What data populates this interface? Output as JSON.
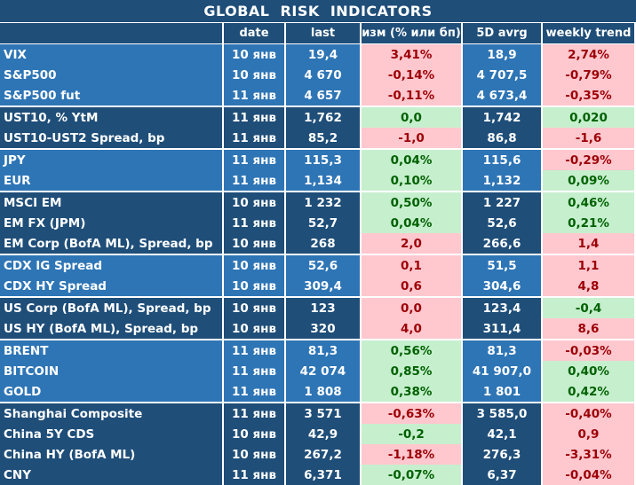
{
  "title": "GLOBAL  RISK  INDICATORS",
  "headers": [
    "",
    "date",
    "last",
    "изм (% или бп)",
    "5D avrg",
    "weekly trend"
  ],
  "rows": [
    {
      "name": "VIX",
      "date": "10 янв",
      "last": "19,4",
      "chg": "3,41%",
      "chg_sign": "neg",
      "avg": "18,9",
      "trend": "2,74%",
      "trend_sign": "neg",
      "group": 0
    },
    {
      "name": "S&P500",
      "date": "10 янв",
      "last": "4 670",
      "chg": "-0,14%",
      "chg_sign": "neg",
      "avg": "4 707,5",
      "trend": "-0,79%",
      "trend_sign": "neg",
      "group": 0
    },
    {
      "name": "S&P500 fut",
      "date": "11 янв",
      "last": "4 657",
      "chg": "-0,11%",
      "chg_sign": "neg",
      "avg": "4 673,4",
      "trend": "-0,35%",
      "trend_sign": "neg",
      "group": 0
    },
    {
      "name": "UST10, % YtM",
      "date": "11 янв",
      "last": "1,762",
      "chg": "0,0",
      "chg_sign": "pos",
      "avg": "1,742",
      "trend": "0,020",
      "trend_sign": "pos",
      "group": 1
    },
    {
      "name": "UST10-UST2 Spread, bp",
      "date": "11 янв",
      "last": "85,2",
      "chg": "-1,0",
      "chg_sign": "neg",
      "avg": "86,8",
      "trend": "-1,6",
      "trend_sign": "neg",
      "group": 1
    },
    {
      "name": "JPY",
      "date": "11 янв",
      "last": "115,3",
      "chg": "0,04%",
      "chg_sign": "pos",
      "avg": "115,6",
      "trend": "-0,29%",
      "trend_sign": "neg",
      "group": 2
    },
    {
      "name": "EUR",
      "date": "11 янв",
      "last": "1,134",
      "chg": "0,10%",
      "chg_sign": "pos",
      "avg": "1,132",
      "trend": "0,09%",
      "trend_sign": "pos",
      "group": 2
    },
    {
      "name": "MSCI EM",
      "date": "10 янв",
      "last": "1 232",
      "chg": "0,50%",
      "chg_sign": "pos",
      "avg": "1 227",
      "trend": "0,46%",
      "trend_sign": "pos",
      "group": 3
    },
    {
      "name": "EM FX (JPM)",
      "date": "11 янв",
      "last": "52,7",
      "chg": "0,04%",
      "chg_sign": "pos",
      "avg": "52,6",
      "trend": "0,21%",
      "trend_sign": "pos",
      "group": 3
    },
    {
      "name": "EM Corp (BofA ML), Spread, bp",
      "date": "10 янв",
      "last": "268",
      "chg": "2,0",
      "chg_sign": "neg",
      "avg": "266,6",
      "trend": "1,4",
      "trend_sign": "neg",
      "group": 3
    },
    {
      "name": "CDX IG Spread",
      "date": "10 янв",
      "last": "52,6",
      "chg": "0,1",
      "chg_sign": "neg",
      "avg": "51,5",
      "trend": "1,1",
      "trend_sign": "neg",
      "group": 4
    },
    {
      "name": "CDX HY Spread",
      "date": "10 янв",
      "last": "309,4",
      "chg": "0,6",
      "chg_sign": "neg",
      "avg": "304,6",
      "trend": "4,8",
      "trend_sign": "neg",
      "group": 4
    },
    {
      "name": "US Corp (BofA ML), Spread, bp",
      "date": "10 янв",
      "last": "123",
      "chg": "0,0",
      "chg_sign": "neg",
      "avg": "123,4",
      "trend": "-0,4",
      "trend_sign": "pos",
      "group": 5
    },
    {
      "name": "US HY (BofA ML), Spread, bp",
      "date": "10 янв",
      "last": "320",
      "chg": "4,0",
      "chg_sign": "neg",
      "avg": "311,4",
      "trend": "8,6",
      "trend_sign": "neg",
      "group": 5
    },
    {
      "name": "BRENT",
      "date": "11 янв",
      "last": "81,3",
      "chg": "0,56%",
      "chg_sign": "pos",
      "avg": "81,3",
      "trend": "-0,03%",
      "trend_sign": "neg",
      "group": 6
    },
    {
      "name": "BITCOIN",
      "date": "11 янв",
      "last": "42 074",
      "chg": "0,85%",
      "chg_sign": "pos",
      "avg": "41 907,0",
      "trend": "0,40%",
      "trend_sign": "pos",
      "group": 6
    },
    {
      "name": "GOLD",
      "date": "11 янв",
      "last": "1 808",
      "chg": "0,38%",
      "chg_sign": "pos",
      "avg": "1 801",
      "trend": "0,42%",
      "trend_sign": "pos",
      "group": 6
    },
    {
      "name": "Shanghai Composite",
      "date": "11 янв",
      "last": "3 571",
      "chg": "-0,63%",
      "chg_sign": "neg",
      "avg": "3 585,0",
      "trend": "-0,40%",
      "trend_sign": "neg",
      "group": 7
    },
    {
      "name": "China 5Y CDS",
      "date": "10 янв",
      "last": "42,9",
      "chg": "-0,2",
      "chg_sign": "pos",
      "avg": "42,1",
      "trend": "0,9",
      "trend_sign": "neg",
      "group": 7
    },
    {
      "name": "China HY (BofA ML)",
      "date": "10 янв",
      "last": "267,2",
      "chg": "-1,18%",
      "chg_sign": "neg",
      "avg": "276,3",
      "trend": "-3,31%",
      "trend_sign": "neg",
      "group": 7
    },
    {
      "name": "CNY",
      "date": "11 янв",
      "last": "6,371",
      "chg": "-0,07%",
      "chg_sign": "pos",
      "avg": "6,37",
      "trend": "-0,04%",
      "trend_sign": "neg",
      "group": 7
    }
  ],
  "colors": {
    "header": "#1f4e79",
    "row_light": "#2e75b6",
    "row_dark": "#1f4e79",
    "neg_bg": "#ffc7ce",
    "neg_fg": "#9c0006",
    "pos_bg": "#c6efce",
    "pos_fg": "#006100"
  }
}
